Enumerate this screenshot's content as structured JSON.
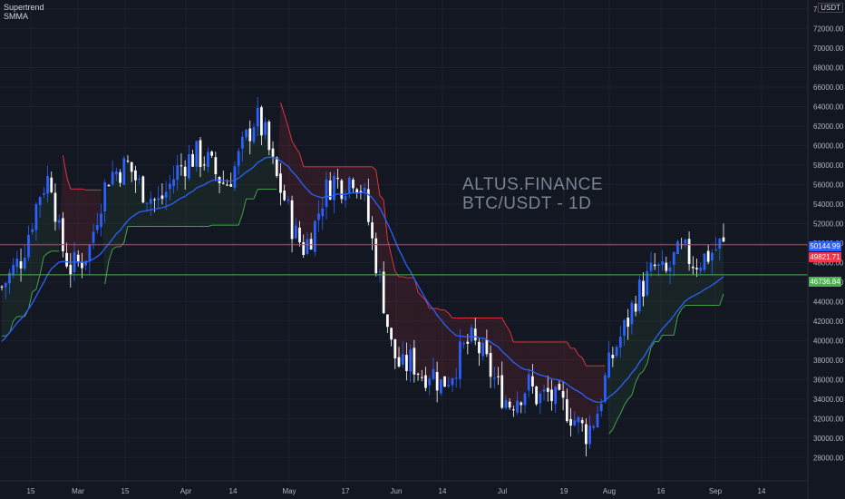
{
  "indicators": [
    "Supertrend",
    "SMMA"
  ],
  "watermark": {
    "line1": "ALTUS.FINANCE",
    "line2": "BTC/USDT - 1D"
  },
  "currency": "USDT",
  "colors": {
    "background": "#131722",
    "up": "#2962ff",
    "down": "#ffffff",
    "smma": "#2962ff",
    "supertrend_up": "#4caf50",
    "supertrend_down": "#f23645",
    "fill_up": "rgba(76,175,80,0.09)",
    "fill_down": "rgba(242,54,69,0.12)",
    "resistance_line": "#f23645",
    "support_line": "#4caf50",
    "last_price_tag": "#2962ff"
  },
  "price_tags": {
    "last": "50144.99",
    "resistance": "49821.71",
    "support": "46736.84"
  },
  "chart_data": {
    "type": "candlestick",
    "symbol": "BTC/USDT",
    "timeframe": "1D",
    "y_axis": {
      "side": "right",
      "range": [
        27000,
        74000
      ],
      "ticks": [
        "74000.00",
        "72000.00",
        "70000.00",
        "68000.00",
        "66000.00",
        "64000.00",
        "62000.00",
        "60000.00",
        "58000.00",
        "56000.00",
        "54000.00",
        "52000.00",
        "50000.00",
        "48000.00",
        "46000.00",
        "44000.00",
        "42000.00",
        "40000.00",
        "38000.00",
        "36000.00",
        "34000.00",
        "32000.00",
        "30000.00",
        "28000.00"
      ]
    },
    "x_axis": {
      "ticks": [
        "15",
        "Mar",
        "15",
        "Apr",
        "14",
        "May",
        "17",
        "Jun",
        "14",
        "Jul",
        "19",
        "Aug",
        "16",
        "Sep",
        "14"
      ]
    },
    "horizontal_lines": [
      {
        "price": 49821.71,
        "color": "#f23645"
      },
      {
        "price": 46736.84,
        "color": "#4caf50"
      }
    ],
    "close_series_approx": [
      [
        0,
        45500
      ],
      [
        5,
        47000
      ],
      [
        10,
        48500
      ],
      [
        15,
        52000
      ],
      [
        20,
        55500
      ],
      [
        25,
        57000
      ],
      [
        30,
        50000
      ],
      [
        35,
        47500
      ],
      [
        40,
        48000
      ],
      [
        45,
        49500
      ],
      [
        50,
        54000
      ],
      [
        55,
        57000
      ],
      [
        60,
        57500
      ],
      [
        65,
        58000
      ],
      [
        70,
        56000
      ],
      [
        75,
        55000
      ],
      [
        80,
        54000
      ],
      [
        85,
        55500
      ],
      [
        90,
        57500
      ],
      [
        95,
        58500
      ],
      [
        100,
        59000
      ],
      [
        105,
        58500
      ],
      [
        110,
        57000
      ],
      [
        115,
        56000
      ],
      [
        120,
        58000
      ],
      [
        125,
        60500
      ],
      [
        130,
        63000
      ],
      [
        135,
        61000
      ],
      [
        140,
        57000
      ],
      [
        145,
        54500
      ],
      [
        150,
        51000
      ],
      [
        155,
        49500
      ],
      [
        160,
        51500
      ],
      [
        165,
        55000
      ],
      [
        170,
        56500
      ],
      [
        175,
        56000
      ],
      [
        180,
        57000
      ],
      [
        185,
        55500
      ],
      [
        190,
        50000
      ],
      [
        195,
        45000
      ],
      [
        200,
        39000
      ],
      [
        205,
        37000
      ],
      [
        210,
        38000
      ],
      [
        215,
        36500
      ],
      [
        220,
        37000
      ],
      [
        225,
        35500
      ],
      [
        230,
        36500
      ],
      [
        235,
        38500
      ],
      [
        240,
        40000
      ],
      [
        245,
        39000
      ],
      [
        250,
        37000
      ],
      [
        255,
        35000
      ],
      [
        260,
        33500
      ],
      [
        265,
        34500
      ],
      [
        270,
        35500
      ],
      [
        275,
        34000
      ],
      [
        280,
        34500
      ],
      [
        285,
        33500
      ],
      [
        290,
        33000
      ],
      [
        295,
        31500
      ],
      [
        300,
        30500
      ],
      [
        305,
        32500
      ],
      [
        310,
        36500
      ],
      [
        315,
        39500
      ],
      [
        320,
        41500
      ],
      [
        325,
        44500
      ],
      [
        330,
        46000
      ],
      [
        335,
        47500
      ],
      [
        340,
        46500
      ],
      [
        345,
        48500
      ],
      [
        350,
        49000
      ],
      [
        355,
        48000
      ],
      [
        360,
        48500
      ],
      [
        365,
        49200
      ],
      [
        370,
        50144.99
      ]
    ]
  }
}
